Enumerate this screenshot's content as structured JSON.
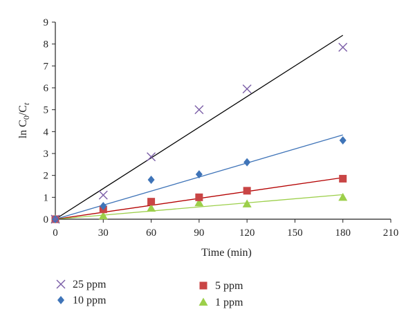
{
  "chart_data": {
    "type": "scatter",
    "xlabel": "Time (min)",
    "ylabel": {
      "base": "ln C",
      "sub1": "0",
      "slash": "/C",
      "sub2": "t"
    },
    "xlim": [
      0,
      210
    ],
    "ylim": [
      0,
      9
    ],
    "x_ticks": [
      "0",
      "30",
      "60",
      "90",
      "120",
      "150",
      "180",
      "210"
    ],
    "y_ticks": [
      "0",
      "1",
      "2",
      "3",
      "4",
      "5",
      "6",
      "7",
      "8",
      "9"
    ],
    "grid": false,
    "legend_position": "bottom",
    "series": [
      {
        "name": "25 ppm",
        "marker": "x",
        "color": "#7b5ea7",
        "line_color": "#000000",
        "x": [
          0,
          30,
          60,
          90,
          120,
          180
        ],
        "y": [
          0,
          1.1,
          2.85,
          5.0,
          5.95,
          7.85
        ],
        "fit": [
          [
            0,
            0
          ],
          [
            180,
            8.4
          ]
        ]
      },
      {
        "name": "10 ppm",
        "marker": "diamond",
        "color": "#3f74b8",
        "line_color": "#3f74b8",
        "x": [
          0,
          30,
          60,
          90,
          120,
          180
        ],
        "y": [
          0,
          0.6,
          1.8,
          2.05,
          2.6,
          3.6
        ],
        "fit": [
          [
            0,
            0
          ],
          [
            180,
            3.85
          ]
        ]
      },
      {
        "name": "5 ppm",
        "marker": "square",
        "color": "#c94545",
        "line_color": "#b40000",
        "x": [
          0,
          30,
          60,
          90,
          120,
          180
        ],
        "y": [
          0,
          0.45,
          0.8,
          1.0,
          1.3,
          1.85
        ],
        "fit": [
          [
            0,
            0
          ],
          [
            180,
            1.9
          ]
        ]
      },
      {
        "name": "1 ppm",
        "marker": "triangle",
        "color": "#9ccf4a",
        "line_color": "#9ccf4a",
        "x": [
          0,
          30,
          60,
          90,
          120,
          180
        ],
        "y": [
          0,
          0.15,
          0.5,
          0.75,
          0.7,
          1.0
        ],
        "fit": [
          [
            0,
            0
          ],
          [
            180,
            1.12
          ]
        ]
      }
    ]
  }
}
